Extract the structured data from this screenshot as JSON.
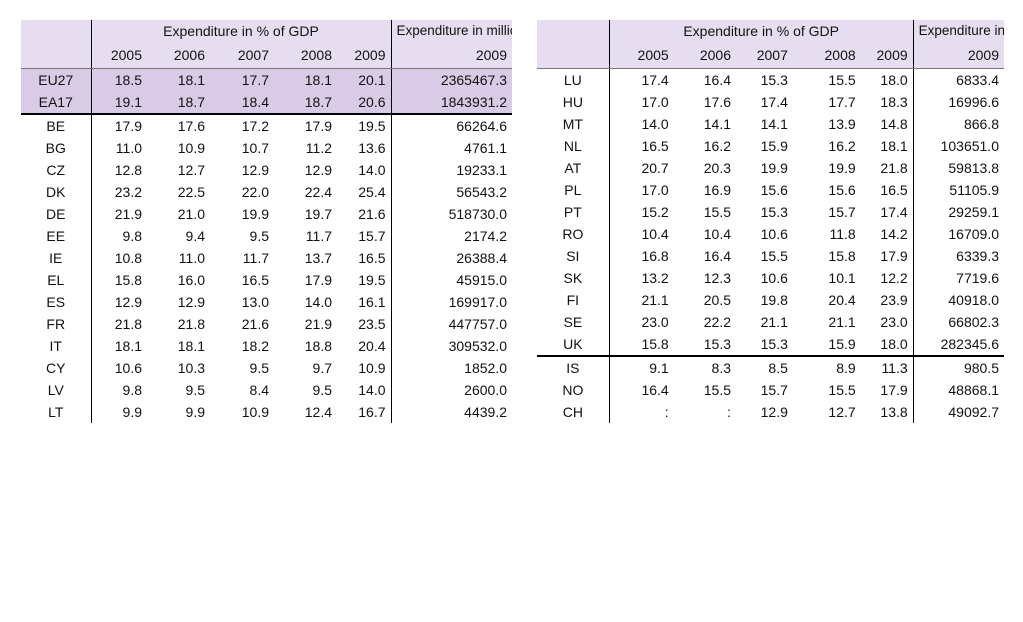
{
  "left": {
    "header_span": "Expenditure in % of GDP",
    "header_millions": "Expenditure in millions of euro",
    "years": [
      "2005",
      "2006",
      "2007",
      "2008",
      "2009",
      "2009"
    ],
    "rows": [
      [
        "EU27",
        "18.5",
        "18.1",
        "17.7",
        "18.1",
        "20.1",
        "2365467.3"
      ],
      [
        "EA17",
        "19.1",
        "18.7",
        "18.4",
        "18.7",
        "20.6",
        "1843931.2"
      ],
      [
        "BE",
        "17.9",
        "17.6",
        "17.2",
        "17.9",
        "19.5",
        "66264.6"
      ],
      [
        "BG",
        "11.0",
        "10.9",
        "10.7",
        "11.2",
        "13.6",
        "4761.1"
      ],
      [
        "CZ",
        "12.8",
        "12.7",
        "12.9",
        "12.9",
        "14.0",
        "19233.1"
      ],
      [
        "DK",
        "23.2",
        "22.5",
        "22.0",
        "22.4",
        "25.4",
        "56543.2"
      ],
      [
        "DE",
        "21.9",
        "21.0",
        "19.9",
        "19.7",
        "21.6",
        "518730.0"
      ],
      [
        "EE",
        "9.8",
        "9.4",
        "9.5",
        "11.7",
        "15.7",
        "2174.2"
      ],
      [
        "IE",
        "10.8",
        "11.0",
        "11.7",
        "13.7",
        "16.5",
        "26388.4"
      ],
      [
        "EL",
        "15.8",
        "16.0",
        "16.5",
        "17.9",
        "19.5",
        "45915.0"
      ],
      [
        "ES",
        "12.9",
        "12.9",
        "13.0",
        "14.0",
        "16.1",
        "169917.0"
      ],
      [
        "FR",
        "21.8",
        "21.8",
        "21.6",
        "21.9",
        "23.5",
        "447757.0"
      ],
      [
        "IT",
        "18.1",
        "18.1",
        "18.2",
        "18.8",
        "20.4",
        "309532.0"
      ],
      [
        "CY",
        "10.6",
        "10.3",
        "9.5",
        "9.7",
        "10.9",
        "1852.0"
      ],
      [
        "LV",
        "9.8",
        "9.5",
        "8.4",
        "9.5",
        "14.0",
        "2600.0"
      ],
      [
        "LT",
        "9.9",
        "9.9",
        "10.9",
        "12.4",
        "16.7",
        "4439.2"
      ]
    ]
  },
  "right": {
    "header_span": "Expenditure in % of GDP",
    "header_millions": "Expenditure in millions of euro",
    "years": [
      "2005",
      "2006",
      "2007",
      "2008",
      "2009",
      "2009"
    ],
    "rows": [
      [
        "LU",
        "17.4",
        "16.4",
        "15.3",
        "15.5",
        "18.0",
        "6833.4"
      ],
      [
        "HU",
        "17.0",
        "17.6",
        "17.4",
        "17.7",
        "18.3",
        "16996.6"
      ],
      [
        "MT",
        "14.0",
        "14.1",
        "14.1",
        "13.9",
        "14.8",
        "866.8"
      ],
      [
        "NL",
        "16.5",
        "16.2",
        "15.9",
        "16.2",
        "18.1",
        "103651.0"
      ],
      [
        "AT",
        "20.7",
        "20.3",
        "19.9",
        "19.9",
        "21.8",
        "59813.8"
      ],
      [
        "PL",
        "17.0",
        "16.9",
        "15.6",
        "15.6",
        "16.5",
        "51105.9"
      ],
      [
        "PT",
        "15.2",
        "15.5",
        "15.3",
        "15.7",
        "17.4",
        "29259.1"
      ],
      [
        "RO",
        "10.4",
        "10.4",
        "10.6",
        "11.8",
        "14.2",
        "16709.0"
      ],
      [
        "SI",
        "16.8",
        "16.4",
        "15.5",
        "15.8",
        "17.9",
        "6339.3"
      ],
      [
        "SK",
        "13.2",
        "12.3",
        "10.6",
        "10.1",
        "12.2",
        "7719.6"
      ],
      [
        "FI",
        "21.1",
        "20.5",
        "19.8",
        "20.4",
        "23.9",
        "40918.0"
      ],
      [
        "SE",
        "23.0",
        "22.2",
        "21.1",
        "21.1",
        "23.0",
        "66802.3"
      ],
      [
        "UK",
        "15.8",
        "15.3",
        "15.3",
        "15.9",
        "18.0",
        "282345.6"
      ],
      [
        "IS",
        "9.1",
        "8.3",
        "8.5",
        "8.9",
        "11.3",
        "980.5"
      ],
      [
        "NO",
        "16.4",
        "15.5",
        "15.7",
        "15.5",
        "17.9",
        "48868.1"
      ],
      [
        "CH",
        ":",
        ":",
        "12.9",
        "12.7",
        "13.8",
        "49092.7"
      ]
    ]
  }
}
